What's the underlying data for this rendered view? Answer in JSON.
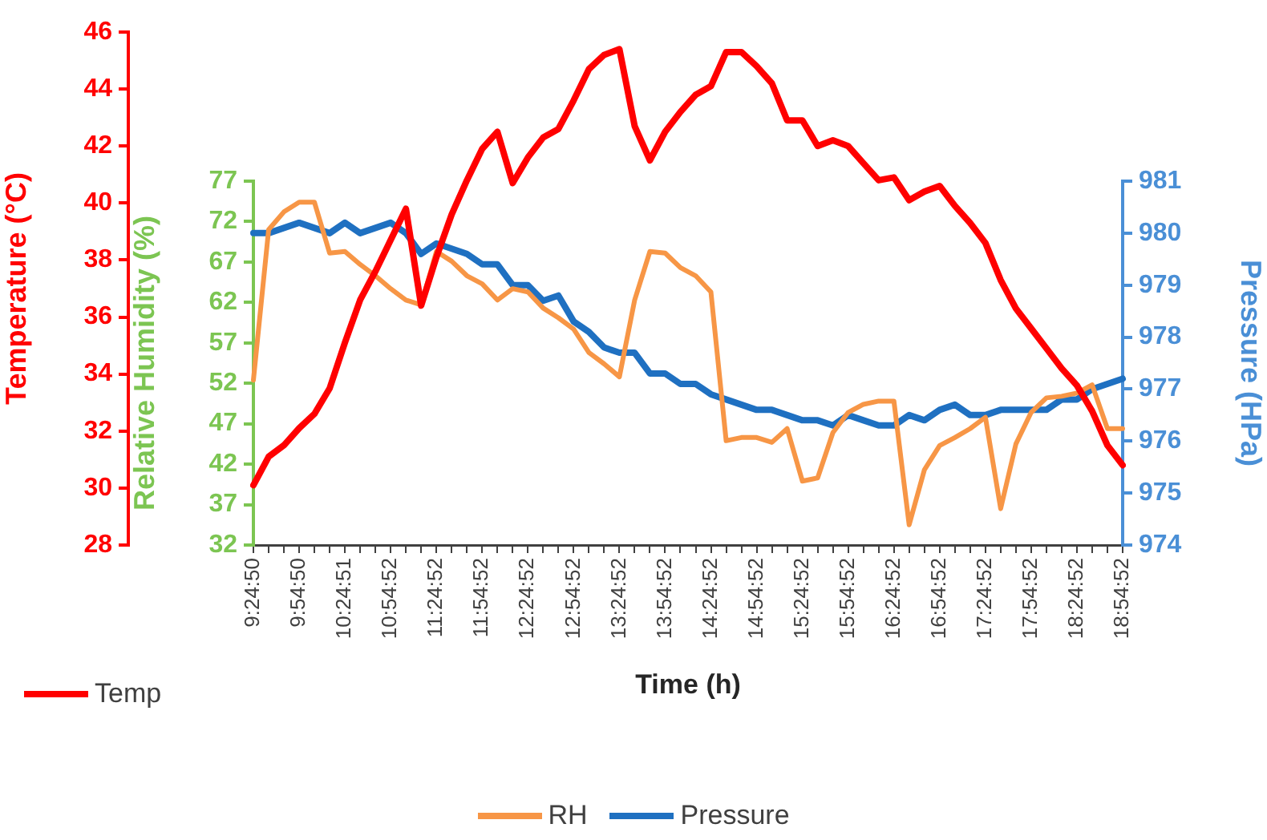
{
  "chart_data": {
    "type": "line",
    "xlabel": "Time (h)",
    "ylabel": "Temperature (°C)",
    "y2label": "Pressure (HPa)",
    "y3label": "Relative Humidity (%)",
    "categories": [
      "9:24:50",
      null,
      null,
      "9:54:50",
      null,
      null,
      "10:24:51",
      null,
      null,
      "10:54:52",
      null,
      null,
      "11:24:52",
      null,
      null,
      "11:54:52",
      null,
      null,
      "12:24:52",
      null,
      null,
      "12:54:52",
      null,
      null,
      "13:24:52",
      null,
      null,
      "13:54:52",
      null,
      null,
      "14:24:52",
      null,
      null,
      "14:54:52",
      null,
      null,
      "15:24:52",
      null,
      null,
      "15:54:52",
      null,
      null,
      "16:24:52",
      null,
      null,
      "16:54:52",
      null,
      null,
      "17:24:52",
      null,
      null,
      "17:54:52",
      null,
      null,
      "18:24:52",
      null,
      null,
      "18:54:52"
    ],
    "series": [
      {
        "name": "Temp",
        "color": "#ff0000",
        "values": [
          30.1,
          31.1,
          31.5,
          32.1,
          32.6,
          33.5,
          35.1,
          36.6,
          37.6,
          38.7,
          39.8,
          36.4,
          38.1,
          39.6,
          40.8,
          41.9,
          42.5,
          40.7,
          41.6,
          42.3,
          42.6,
          43.6,
          44.7,
          45.2,
          45.4,
          42.7,
          41.5,
          42.5,
          43.2,
          43.8,
          44.1,
          45.3,
          45.3,
          44.8,
          44.2,
          42.9,
          42.9,
          42.0,
          42.2,
          42.0,
          41.4,
          40.8,
          40.9,
          40.1,
          40.4,
          40.6,
          39.9,
          39.3,
          38.6,
          37.3,
          36.3,
          35.6,
          34.9,
          34.2,
          33.6,
          32.7,
          31.5,
          30.8
        ]
      },
      {
        "name": "RH",
        "color": "#f79646",
        "axis": "y3",
        "values": [
          52.4,
          71.0,
          73.2,
          74.4,
          74.4,
          68.1,
          68.3,
          66.7,
          65.3,
          63.7,
          62.3,
          61.7,
          68.3,
          67.1,
          65.3,
          64.3,
          62.3,
          63.7,
          63.3,
          61.3,
          60.1,
          58.7,
          55.8,
          54.4,
          52.8,
          62.3,
          68.3,
          68.1,
          66.3,
          65.3,
          63.3,
          44.9,
          45.3,
          45.3,
          44.7,
          46.4,
          39.9,
          40.3,
          45.9,
          48.4,
          49.4,
          49.8,
          49.8,
          34.5,
          41.3,
          44.3,
          45.3,
          46.4,
          47.8,
          36.5,
          44.5,
          48.4,
          50.2,
          50.4,
          50.8,
          51.8,
          46.4,
          46.4
        ]
      },
      {
        "name": "Pressure",
        "color": "#1f70c1",
        "axis": "y2",
        "values": [
          980.0,
          980.0,
          980.1,
          980.2,
          980.1,
          980.0,
          980.2,
          980.0,
          980.1,
          980.2,
          980.0,
          979.6,
          979.8,
          979.7,
          979.6,
          979.4,
          979.4,
          979.0,
          979.0,
          978.7,
          978.8,
          978.3,
          978.1,
          977.8,
          977.7,
          977.7,
          977.3,
          977.3,
          977.1,
          977.1,
          976.9,
          976.8,
          976.7,
          976.6,
          976.6,
          976.5,
          976.4,
          976.4,
          976.3,
          976.5,
          976.4,
          976.3,
          976.3,
          976.5,
          976.4,
          976.6,
          976.7,
          976.5,
          976.5,
          976.6,
          976.6,
          976.6,
          976.6,
          976.8,
          976.8,
          977.0,
          977.1,
          977.2
        ]
      }
    ],
    "ylim": [
      28,
      46
    ],
    "yticks": [
      28,
      30,
      32,
      34,
      36,
      38,
      40,
      42,
      44,
      46
    ],
    "y2lim": [
      974,
      981
    ],
    "y2ticks": [
      974,
      975,
      976,
      977,
      978,
      979,
      980,
      981
    ],
    "y3lim": [
      32,
      77
    ],
    "y3ticks": [
      32,
      37,
      42,
      47,
      52,
      57,
      62,
      67,
      72,
      77
    ],
    "legend": "bottom",
    "grid": false,
    "marker": "none",
    "line_style": "solid"
  }
}
